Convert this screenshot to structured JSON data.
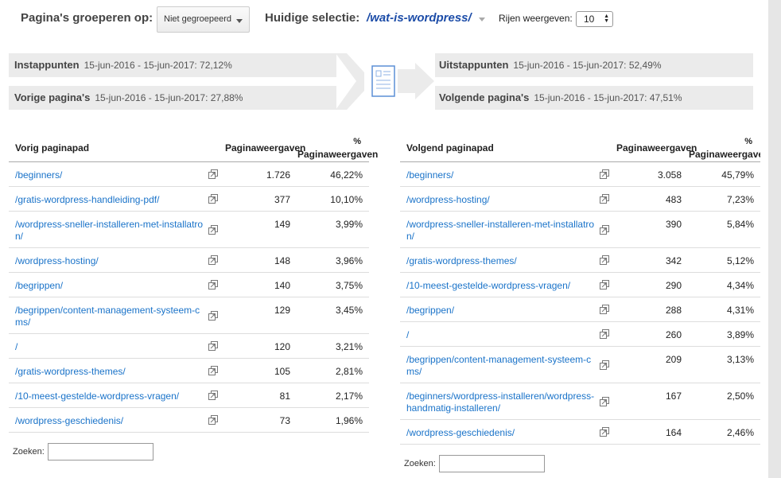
{
  "controls": {
    "group_label": "Pagina's groeperen op:",
    "group_value": "Niet gegroepeerd",
    "current_label": "Huidige selectie:",
    "current_value": "/wat-is-wordpress/",
    "rows_label": "Rijen weergeven:",
    "rows_value": "10"
  },
  "flow": {
    "entrances": {
      "title": "Instappunten",
      "detail": "15-jun-2016 - 15-jun-2017: 72,12%"
    },
    "previous": {
      "title": "Vorige pagina's",
      "detail": "15-jun-2016 - 15-jun-2017: 27,88%"
    },
    "exits": {
      "title": "Uitstappunten",
      "detail": "15-jun-2016 - 15-jun-2017: 52,49%"
    },
    "next": {
      "title": "Volgende pagina's",
      "detail": "15-jun-2016 - 15-jun-2017: 47,51%"
    }
  },
  "prev_table": {
    "col_path": "Vorig paginapad",
    "col_views": "Paginaweergaven",
    "col_pct_symbol": "%",
    "col_pct": "Paginaweergaven",
    "rows": [
      {
        "path": "/beginners/",
        "views": "1.726",
        "pct": "46,22%"
      },
      {
        "path": "/gratis-wordpress-handleiding-pdf/",
        "views": "377",
        "pct": "10,10%"
      },
      {
        "path": "/wordpress-sneller-installeren-met-installatron/",
        "views": "149",
        "pct": "3,99%"
      },
      {
        "path": "/wordpress-hosting/",
        "views": "148",
        "pct": "3,96%"
      },
      {
        "path": "/begrippen/",
        "views": "140",
        "pct": "3,75%"
      },
      {
        "path": "/begrippen/content-management-systeem-cms/",
        "views": "129",
        "pct": "3,45%"
      },
      {
        "path": "/",
        "views": "120",
        "pct": "3,21%"
      },
      {
        "path": "/gratis-wordpress-themes/",
        "views": "105",
        "pct": "2,81%"
      },
      {
        "path": "/10-meest-gestelde-wordpress-vragen/",
        "views": "81",
        "pct": "2,17%"
      },
      {
        "path": "/wordpress-geschiedenis/",
        "views": "73",
        "pct": "1,96%"
      }
    ],
    "search_label": "Zoeken:"
  },
  "next_table": {
    "col_path": "Volgend paginapad",
    "col_views": "Paginaweergaven",
    "col_pct_symbol": "%",
    "col_pct": "Paginaweergaven",
    "rows": [
      {
        "path": "/beginners/",
        "views": "3.058",
        "pct": "45,79%"
      },
      {
        "path": "/wordpress-hosting/",
        "views": "483",
        "pct": "7,23%"
      },
      {
        "path": "/wordpress-sneller-installeren-met-installatron/",
        "views": "390",
        "pct": "5,84%"
      },
      {
        "path": "/gratis-wordpress-themes/",
        "views": "342",
        "pct": "5,12%"
      },
      {
        "path": "/10-meest-gestelde-wordpress-vragen/",
        "views": "290",
        "pct": "4,34%"
      },
      {
        "path": "/begrippen/",
        "views": "288",
        "pct": "4,31%"
      },
      {
        "path": "/",
        "views": "260",
        "pct": "3,89%"
      },
      {
        "path": "/begrippen/content-management-systeem-cms/",
        "views": "209",
        "pct": "3,13%"
      },
      {
        "path": "/beginners/wordpress-installeren/wordpress-handmatig-installeren/",
        "views": "167",
        "pct": "2,50%"
      },
      {
        "path": "/wordpress-geschiedenis/",
        "views": "164",
        "pct": "2,46%"
      }
    ],
    "search_label": "Zoeken:"
  }
}
